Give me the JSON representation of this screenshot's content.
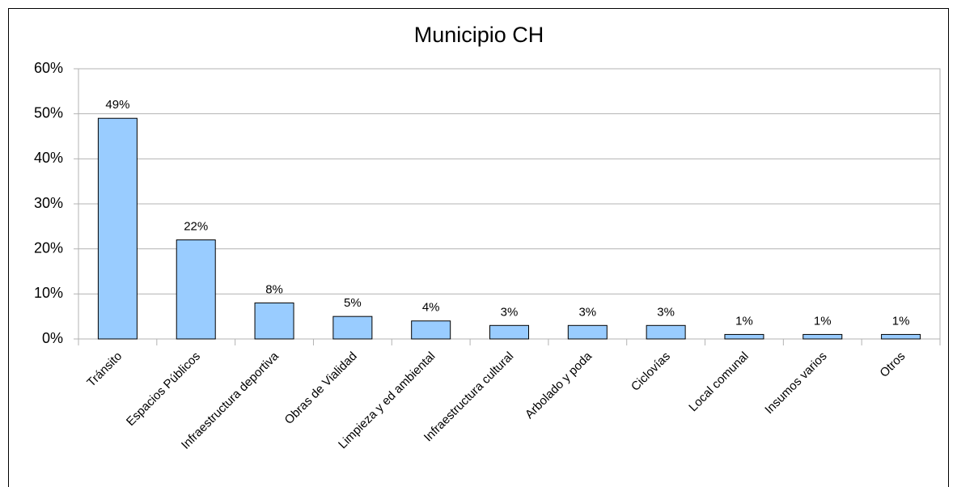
{
  "chart_data": {
    "type": "bar",
    "title": "Municipio CH",
    "categories": [
      "Tránsito",
      "Espacios Públicos",
      "Infraestructura deportiva",
      "Obras de Vialidad",
      "Limpieza y ed ambiental",
      "Infraestructura cultural",
      "Arbolado y poda",
      "Ciclovías",
      "Local comunal",
      "Insumos varios",
      "Otros"
    ],
    "values": [
      49,
      22,
      8,
      5,
      4,
      3,
      3,
      3,
      1,
      1,
      1
    ],
    "value_labels": [
      "49%",
      "22%",
      "8%",
      "5%",
      "4%",
      "3%",
      "3%",
      "3%",
      "1%",
      "1%",
      "1%"
    ],
    "color": "#99ccff",
    "ylim": [
      0,
      60
    ],
    "yticks": [
      {
        "value": 0,
        "label": "0%"
      },
      {
        "value": 10,
        "label": "10%"
      },
      {
        "value": 20,
        "label": "20%"
      },
      {
        "value": 30,
        "label": "30%"
      },
      {
        "value": 40,
        "label": "40%"
      },
      {
        "value": 50,
        "label": "50%"
      },
      {
        "value": 60,
        "label": "60%"
      }
    ],
    "grid": true
  }
}
